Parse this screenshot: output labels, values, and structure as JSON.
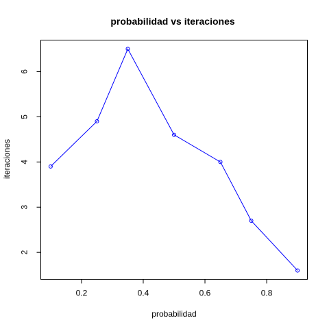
{
  "chart_data": {
    "type": "line",
    "title": "probabilidad vs iteraciones",
    "xlabel": "probabilidad",
    "ylabel": "iteraciones",
    "x": [
      0.1,
      0.25,
      0.35,
      0.5,
      0.65,
      0.75,
      0.9
    ],
    "series": [
      {
        "values": [
          3.9,
          4.9,
          6.5,
          4.6,
          4.0,
          2.7,
          1.6
        ]
      }
    ],
    "xlim": [
      0.068,
      0.932
    ],
    "ylim": [
      1.404,
      6.696
    ],
    "xticks": [
      0.2,
      0.4,
      0.6,
      0.8
    ],
    "xtick_labels": [
      "0.2",
      "0.4",
      "0.6",
      "0.8"
    ],
    "yticks": [
      2,
      3,
      4,
      5,
      6
    ],
    "ytick_labels": [
      "2",
      "3",
      "4",
      "5",
      "6"
    ],
    "marker": "open-circle",
    "grid": false,
    "legend": "none",
    "colors": {
      "series": "#0000ff",
      "axes": "#000000",
      "background": "#ffffff"
    }
  }
}
